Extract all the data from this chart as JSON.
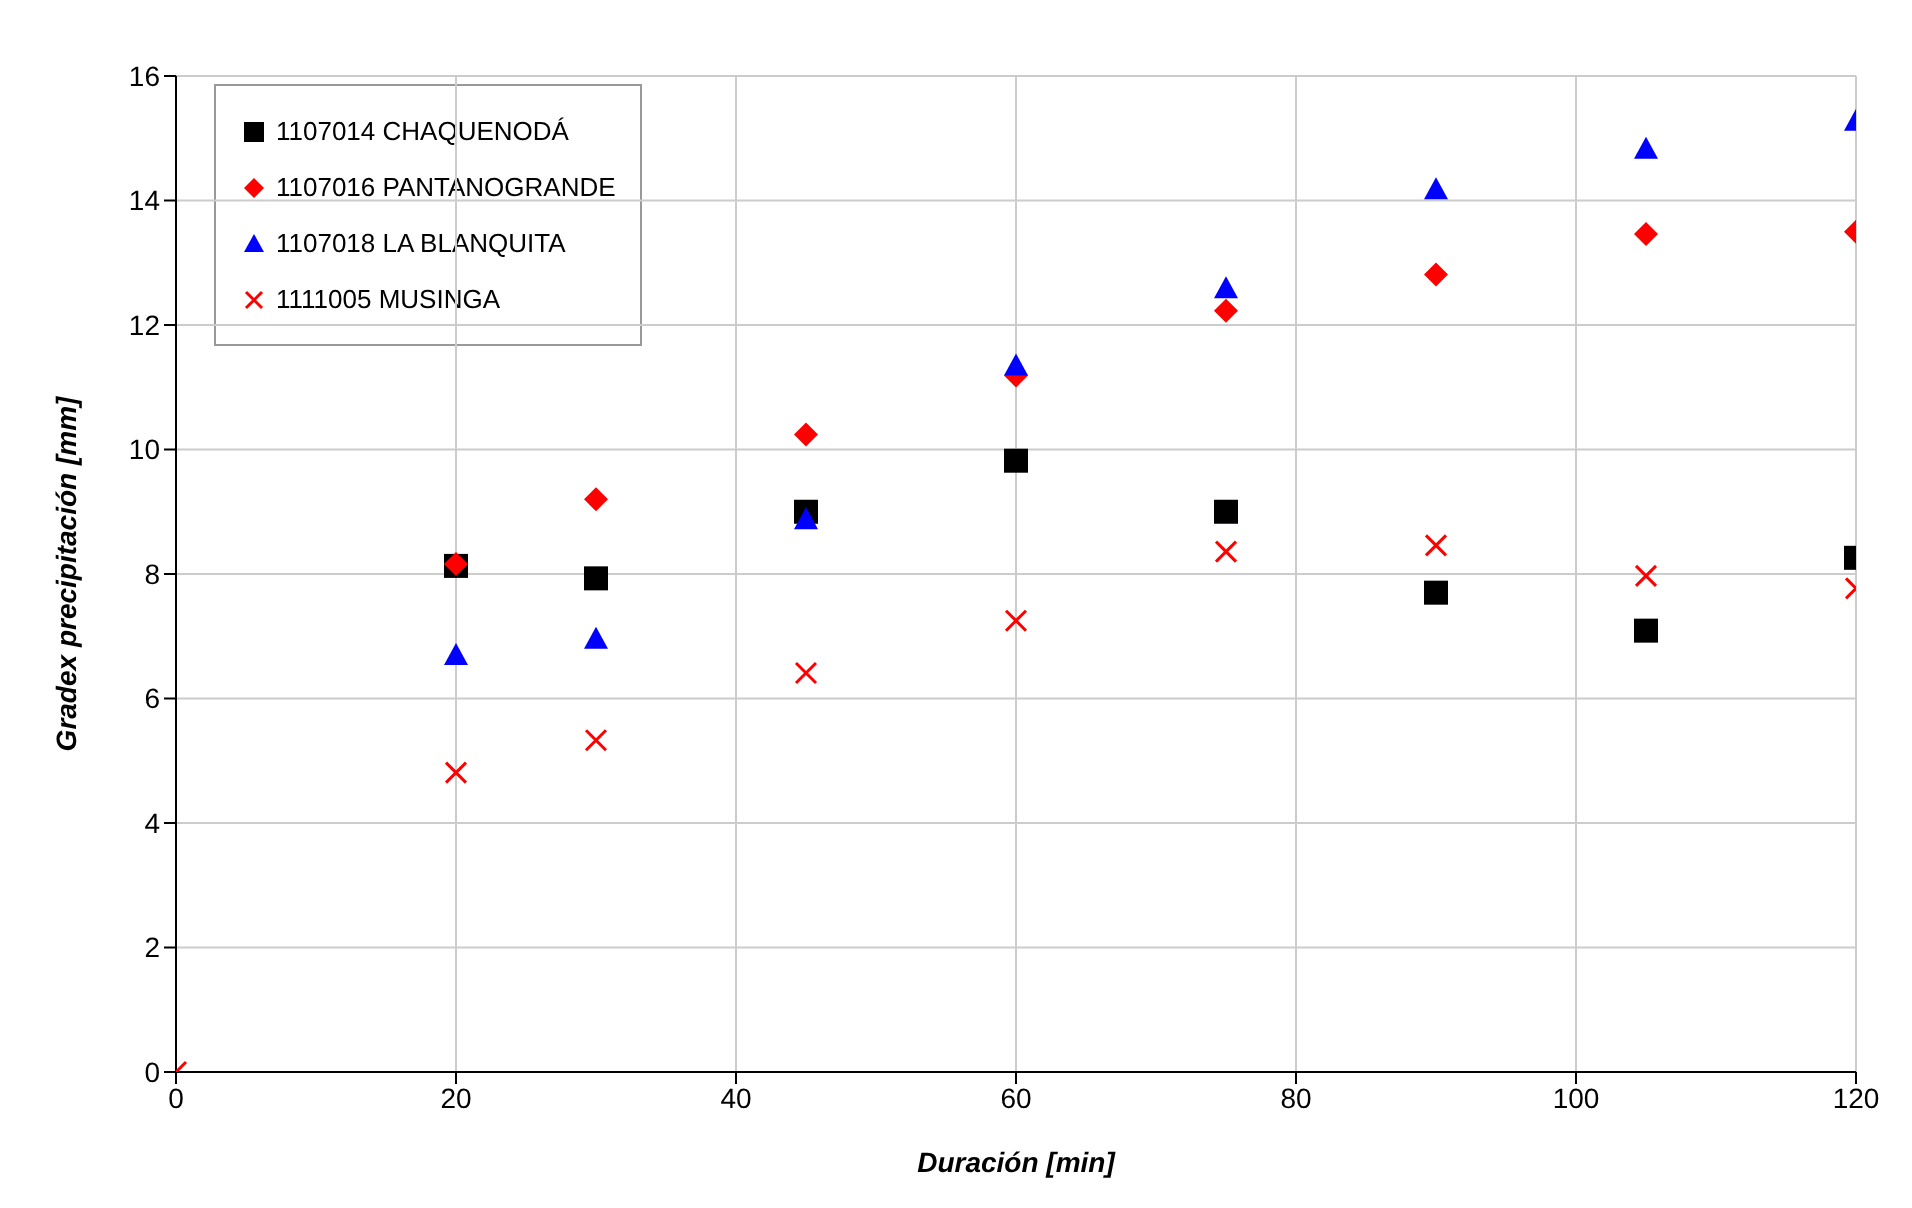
{
  "chart_data": {
    "type": "scatter",
    "xlabel": "Duración [min]",
    "ylabel": "Gradex precipitación [mm]",
    "xlim": [
      0,
      120
    ],
    "xticks": [
      0,
      20,
      40,
      60,
      80,
      100,
      120
    ],
    "ylim": [
      0,
      16
    ],
    "yticks": [
      0,
      2,
      4,
      6,
      8,
      10,
      12,
      14,
      16
    ],
    "grid": true,
    "legend": "top left",
    "series": [
      {
        "name": "1107014 CHAQUENODÁ",
        "color": "#000000",
        "marker": "square",
        "x": [
          20,
          30,
          45,
          60,
          75,
          90,
          105,
          120
        ],
        "values": [
          8.13,
          7.93,
          9.0,
          9.82,
          9.0,
          7.7,
          7.09,
          8.26
        ]
      },
      {
        "name": "1107016 PANTANOGRANDE",
        "color": "#ff0000",
        "marker": "diamond",
        "x": [
          20,
          30,
          45,
          60,
          75,
          90,
          105,
          120
        ],
        "values": [
          8.16,
          9.2,
          10.24,
          11.19,
          12.23,
          12.81,
          13.46,
          13.5
        ]
      },
      {
        "name": "1107018 LA BLANQUITA",
        "color": "#0000ff",
        "marker": "triangle",
        "x": [
          20,
          30,
          45,
          60,
          75,
          90,
          105,
          120
        ],
        "values": [
          6.7,
          6.96,
          8.88,
          11.35,
          12.59,
          14.18,
          14.83,
          15.28
        ]
      },
      {
        "name": "1111005 MUSINGA",
        "color": "#ff0000",
        "marker": "cross",
        "x": [
          0,
          20,
          30,
          45,
          60,
          75,
          90,
          105,
          120
        ],
        "values": [
          0,
          4.81,
          5.33,
          6.41,
          7.25,
          8.36,
          8.46,
          7.97,
          7.77
        ]
      }
    ]
  }
}
